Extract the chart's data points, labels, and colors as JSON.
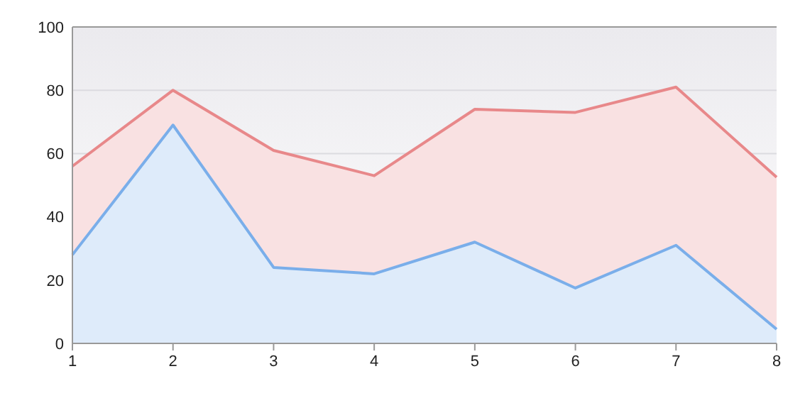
{
  "chart_data": {
    "type": "area",
    "x": [
      1,
      2,
      3,
      4,
      5,
      6,
      7,
      8
    ],
    "series": [
      {
        "color": "#e8888a",
        "values": [
          56,
          80,
          61,
          53,
          74,
          73,
          81,
          52.5
        ]
      },
      {
        "color": "#7aaeea",
        "values": [
          28,
          69,
          24,
          22,
          32,
          17.5,
          31,
          4.5
        ]
      }
    ],
    "xlim": [
      1,
      8
    ],
    "xticks": [
      1,
      2,
      3,
      4,
      5,
      6,
      7,
      8
    ],
    "ylim": [
      0,
      100
    ],
    "yticks": [
      0,
      20,
      40,
      60,
      80,
      100
    ],
    "grid": "y"
  }
}
